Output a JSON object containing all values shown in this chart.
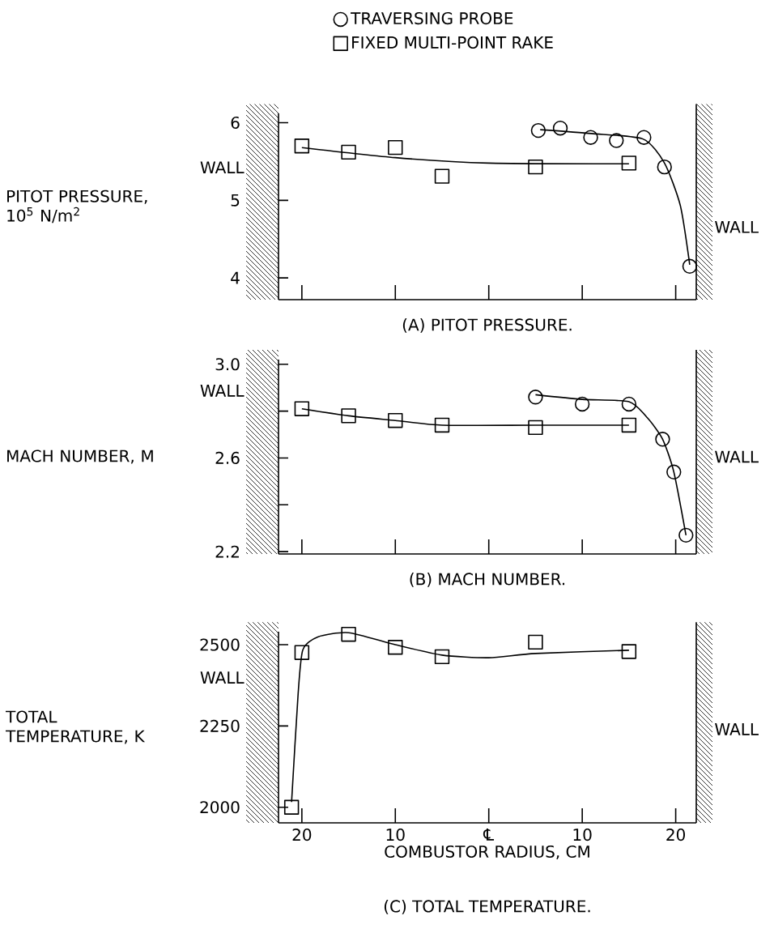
{
  "chart_data": [
    {
      "type": "scatter",
      "title": "(A) PITOT PRESSURE.",
      "ylabel": "PITOT PRESSURE, 10$^{5}$ N/m$^{2}$",
      "xlim": [
        -22.5,
        22.2
      ],
      "xticks": [
        -20,
        -10,
        0,
        10,
        20
      ],
      "ylim": [
        3.72,
        6.12
      ],
      "yticks": [
        4,
        5,
        6
      ],
      "tick_labels": "y",
      "legend": "top",
      "annotations": [
        "WALL",
        "WALL"
      ],
      "series": [
        {
          "name": "TRAVERSING PROBE",
          "color": "#000000",
          "marker": "circle",
          "x": [
            5.3,
            7.65,
            10.9,
            13.65,
            16.6,
            18.8,
            21.5
          ],
          "values": [
            5.9,
            5.93,
            5.81,
            5.77,
            5.81,
            5.43,
            4.15
          ]
        },
        {
          "name": "FIXED MULTI-POINT RAKE",
          "color": "#000000",
          "marker": "square",
          "x": [
            -20,
            -15,
            -10,
            -5,
            5,
            15
          ],
          "values": [
            5.7,
            5.62,
            5.68,
            5.31,
            5.43,
            5.48
          ]
        },
        {
          "type": "line",
          "color": "#000000",
          "marker": "none",
          "x": [
            -20,
            -10,
            0,
            15
          ],
          "values": [
            5.68,
            5.55,
            5.48,
            5.47
          ]
        },
        {
          "type": "line",
          "color": "#000000",
          "marker": "none",
          "x": [
            5.5,
            11,
            16.5,
            18.8,
            20.5,
            21.5
          ],
          "values": [
            5.91,
            5.86,
            5.79,
            5.48,
            4.93,
            4.17
          ]
        }
      ]
    },
    {
      "type": "scatter",
      "title": "(B) MACH NUMBER.",
      "ylabel": "MACH NUMBER, M",
      "xlim": [
        -22.5,
        22.2
      ],
      "xticks": [
        -20,
        -10,
        0,
        10,
        20
      ],
      "ylim": [
        2.19,
        3.02
      ],
      "yticks": [
        {
          "value": 3.0,
          "label": "3.0"
        },
        {
          "value": 2.8,
          "label": null
        },
        2.6,
        {
          "value": 2.4,
          "label": null
        },
        2.2
      ],
      "tick_labels": "y",
      "annotations": [
        "WALL",
        "WALL"
      ],
      "series": [
        {
          "color": "#000000",
          "marker": "circle",
          "x": [
            5,
            10,
            15,
            18.6,
            19.8,
            21.1
          ],
          "values": [
            2.86,
            2.83,
            2.83,
            2.68,
            2.54,
            2.27
          ]
        },
        {
          "color": "#000000",
          "marker": "square",
          "x": [
            -20,
            -15,
            -10,
            -5,
            5,
            15
          ],
          "values": [
            2.81,
            2.78,
            2.76,
            2.74,
            2.73,
            2.74
          ]
        },
        {
          "type": "line",
          "color": "#000000",
          "marker": "none",
          "x": [
            -20,
            -15,
            -10,
            -5,
            5,
            15
          ],
          "values": [
            2.81,
            2.78,
            2.76,
            2.74,
            2.74,
            2.74
          ]
        },
        {
          "type": "line",
          "color": "#000000",
          "marker": "none",
          "x": [
            5,
            10,
            15,
            17,
            18.6,
            19.8,
            21.1
          ],
          "values": [
            2.87,
            2.85,
            2.84,
            2.77,
            2.68,
            2.54,
            2.27
          ]
        }
      ]
    },
    {
      "type": "scatter",
      "title": "(C) TOTAL TEMPERATURE.",
      "xlabel": "COMBUSTOR RADIUS, CM",
      "ylabel": "TOTAL TEMPERATURE, K",
      "xlim": [
        -22.5,
        22.2
      ],
      "xticks": [
        {
          "value": -20,
          "label": "20"
        },
        {
          "value": -10,
          "label": "10"
        },
        {
          "value": 0,
          "label": "℄"
        },
        {
          "value": 10,
          "label": "10"
        },
        {
          "value": 20,
          "label": "20"
        }
      ],
      "ylim": [
        1952,
        2540
      ],
      "yticks": [
        2000,
        2250,
        2500
      ],
      "annotations": [
        "WALL",
        "WALL"
      ],
      "series": [
        {
          "color": "#000000",
          "marker": "square",
          "x": [
            -21.1,
            -20,
            -15,
            -10,
            -5,
            5,
            15
          ],
          "values": [
            2000,
            2476,
            2532,
            2492,
            2463,
            2508,
            2479
          ]
        },
        {
          "type": "line",
          "color": "#000000",
          "marker": "none",
          "x": [
            -21.1,
            -20.4,
            -19.9,
            -18.3,
            -15,
            -10,
            -5,
            0,
            5,
            15
          ],
          "values": [
            2016,
            2349,
            2484,
            2524,
            2537,
            2500,
            2468,
            2460,
            2473,
            2483
          ]
        }
      ]
    }
  ]
}
